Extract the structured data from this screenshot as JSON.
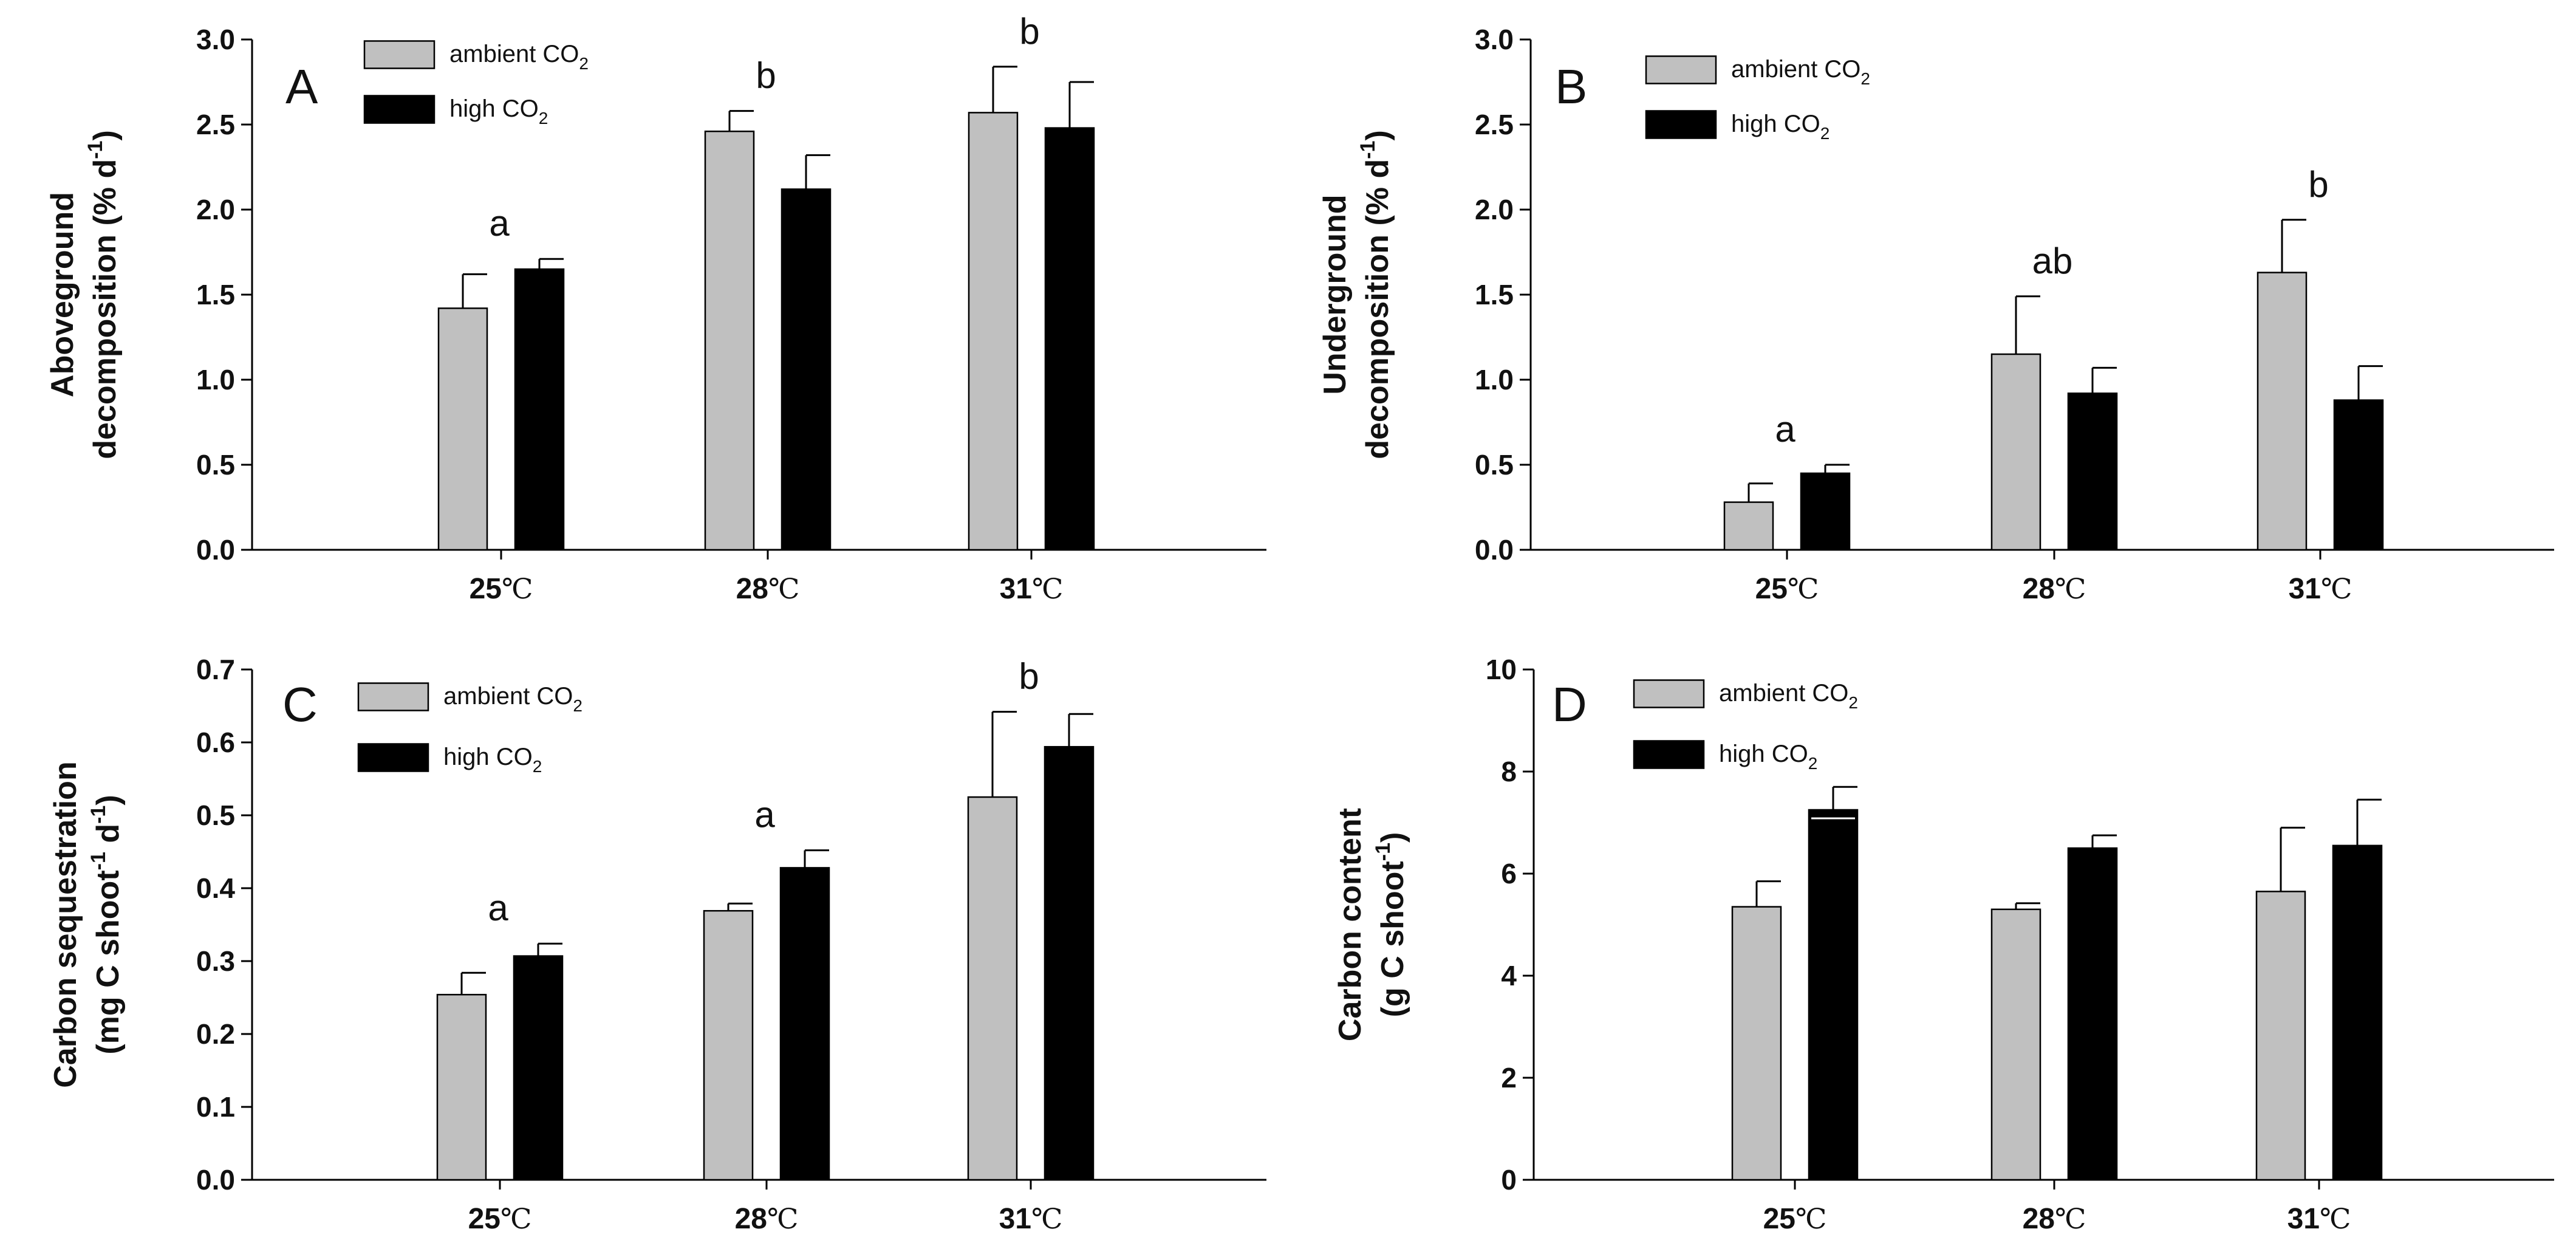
{
  "chart_data": [
    {
      "type": "bar",
      "panel_letter": "A",
      "categories": [
        {
          "num": "25",
          "unit": "℃"
        },
        {
          "num": "28",
          "unit": "℃"
        },
        {
          "num": "31",
          "unit": "℃"
        }
      ],
      "series": [
        {
          "name": "ambient",
          "values": [
            1.42,
            2.46,
            2.57
          ],
          "errors": [
            0.2,
            0.12,
            0.27
          ],
          "color": "#c0c0c0"
        },
        {
          "name": "high",
          "values": [
            1.65,
            2.12,
            2.48
          ],
          "errors": [
            0.06,
            0.2,
            0.27
          ],
          "color": "#000000"
        }
      ],
      "legend": [
        {
          "prefix": "ambient CO",
          "sub": "2"
        },
        {
          "prefix": "high CO",
          "sub": "2"
        }
      ],
      "significance": [
        "a",
        "b",
        "b"
      ],
      "ylabel": {
        "line1": "Aboveground",
        "line2_prefix": "decomposition (% d",
        "line2_sup": "-1",
        "line2_suffix": ")"
      },
      "ylim": [
        0,
        3.0
      ],
      "yticks": [
        "0.0",
        "0.5",
        "1.0",
        "1.5",
        "2.0",
        "2.5",
        "3.0"
      ]
    },
    {
      "type": "bar",
      "panel_letter": "B",
      "categories": [
        {
          "num": "25",
          "unit": "℃"
        },
        {
          "num": "28",
          "unit": "℃"
        },
        {
          "num": "31",
          "unit": "℃"
        }
      ],
      "series": [
        {
          "name": "ambient",
          "values": [
            0.28,
            1.15,
            1.63
          ],
          "errors": [
            0.11,
            0.34,
            0.31
          ],
          "color": "#c0c0c0"
        },
        {
          "name": "high",
          "values": [
            0.45,
            0.92,
            0.88
          ],
          "errors": [
            0.05,
            0.15,
            0.2
          ],
          "color": "#000000"
        }
      ],
      "legend": [
        {
          "prefix": "ambient CO",
          "sub": "2"
        },
        {
          "prefix": "high CO",
          "sub": "2"
        }
      ],
      "significance": [
        "a",
        "ab",
        "b"
      ],
      "ylabel": {
        "line1": "Underground",
        "line2_prefix": "decomposition (% d",
        "line2_sup": "-1",
        "line2_suffix": ")"
      },
      "ylim": [
        0,
        3.0
      ],
      "yticks": [
        "0.0",
        "0.5",
        "1.0",
        "1.5",
        "2.0",
        "2.5",
        "3.0"
      ]
    },
    {
      "type": "bar",
      "panel_letter": "C",
      "categories": [
        {
          "num": "25",
          "unit": "℃"
        },
        {
          "num": "28",
          "unit": "℃"
        },
        {
          "num": "31",
          "unit": "℃"
        }
      ],
      "series": [
        {
          "name": "ambient",
          "values": [
            0.254,
            0.369,
            0.525
          ],
          "errors": [
            0.03,
            0.01,
            0.117
          ],
          "color": "#c0c0c0"
        },
        {
          "name": "high",
          "values": [
            0.307,
            0.428,
            0.594
          ],
          "errors": [
            0.017,
            0.024,
            0.045
          ],
          "color": "#000000"
        }
      ],
      "legend": [
        {
          "prefix": "ambient CO",
          "sub": "2"
        },
        {
          "prefix": "high CO",
          "sub": "2"
        }
      ],
      "significance": [
        "a",
        "a",
        "b"
      ],
      "ylabel": {
        "line1": "Carbon sequestration",
        "line2_prefix": "(mg C shoot",
        "line2_sup": "-1",
        "line2_mid": " d",
        "line2_sup2": "-1",
        "line2_suffix": ")"
      },
      "ylim": [
        0,
        0.7
      ],
      "yticks": [
        "0.0",
        "0.1",
        "0.2",
        "0.3",
        "0.4",
        "0.5",
        "0.6",
        "0.7"
      ]
    },
    {
      "type": "bar",
      "panel_letter": "D",
      "categories": [
        {
          "num": "25",
          "unit": "℃"
        },
        {
          "num": "28",
          "unit": "℃"
        },
        {
          "num": "31",
          "unit": "℃"
        }
      ],
      "series": [
        {
          "name": "ambient",
          "values": [
            5.35,
            5.3,
            5.65
          ],
          "errors": [
            0.5,
            0.12,
            1.25
          ],
          "color": "#c0c0c0"
        },
        {
          "name": "high",
          "values": [
            7.25,
            6.5,
            6.55
          ],
          "errors": [
            0.45,
            0.25,
            0.9
          ],
          "color": "#000000"
        }
      ],
      "legend": [
        {
          "prefix": "ambient CO",
          "sub": "2"
        },
        {
          "prefix": "high CO",
          "sub": "2"
        }
      ],
      "significance": [],
      "ylabel": {
        "line1": "Carbon content",
        "line2_prefix": "(g C shoot",
        "line2_sup": "-1",
        "line2_suffix": ")"
      },
      "ylim": [
        0,
        10
      ],
      "yticks": [
        "0",
        "2",
        "4",
        "6",
        "8",
        "10"
      ]
    }
  ]
}
